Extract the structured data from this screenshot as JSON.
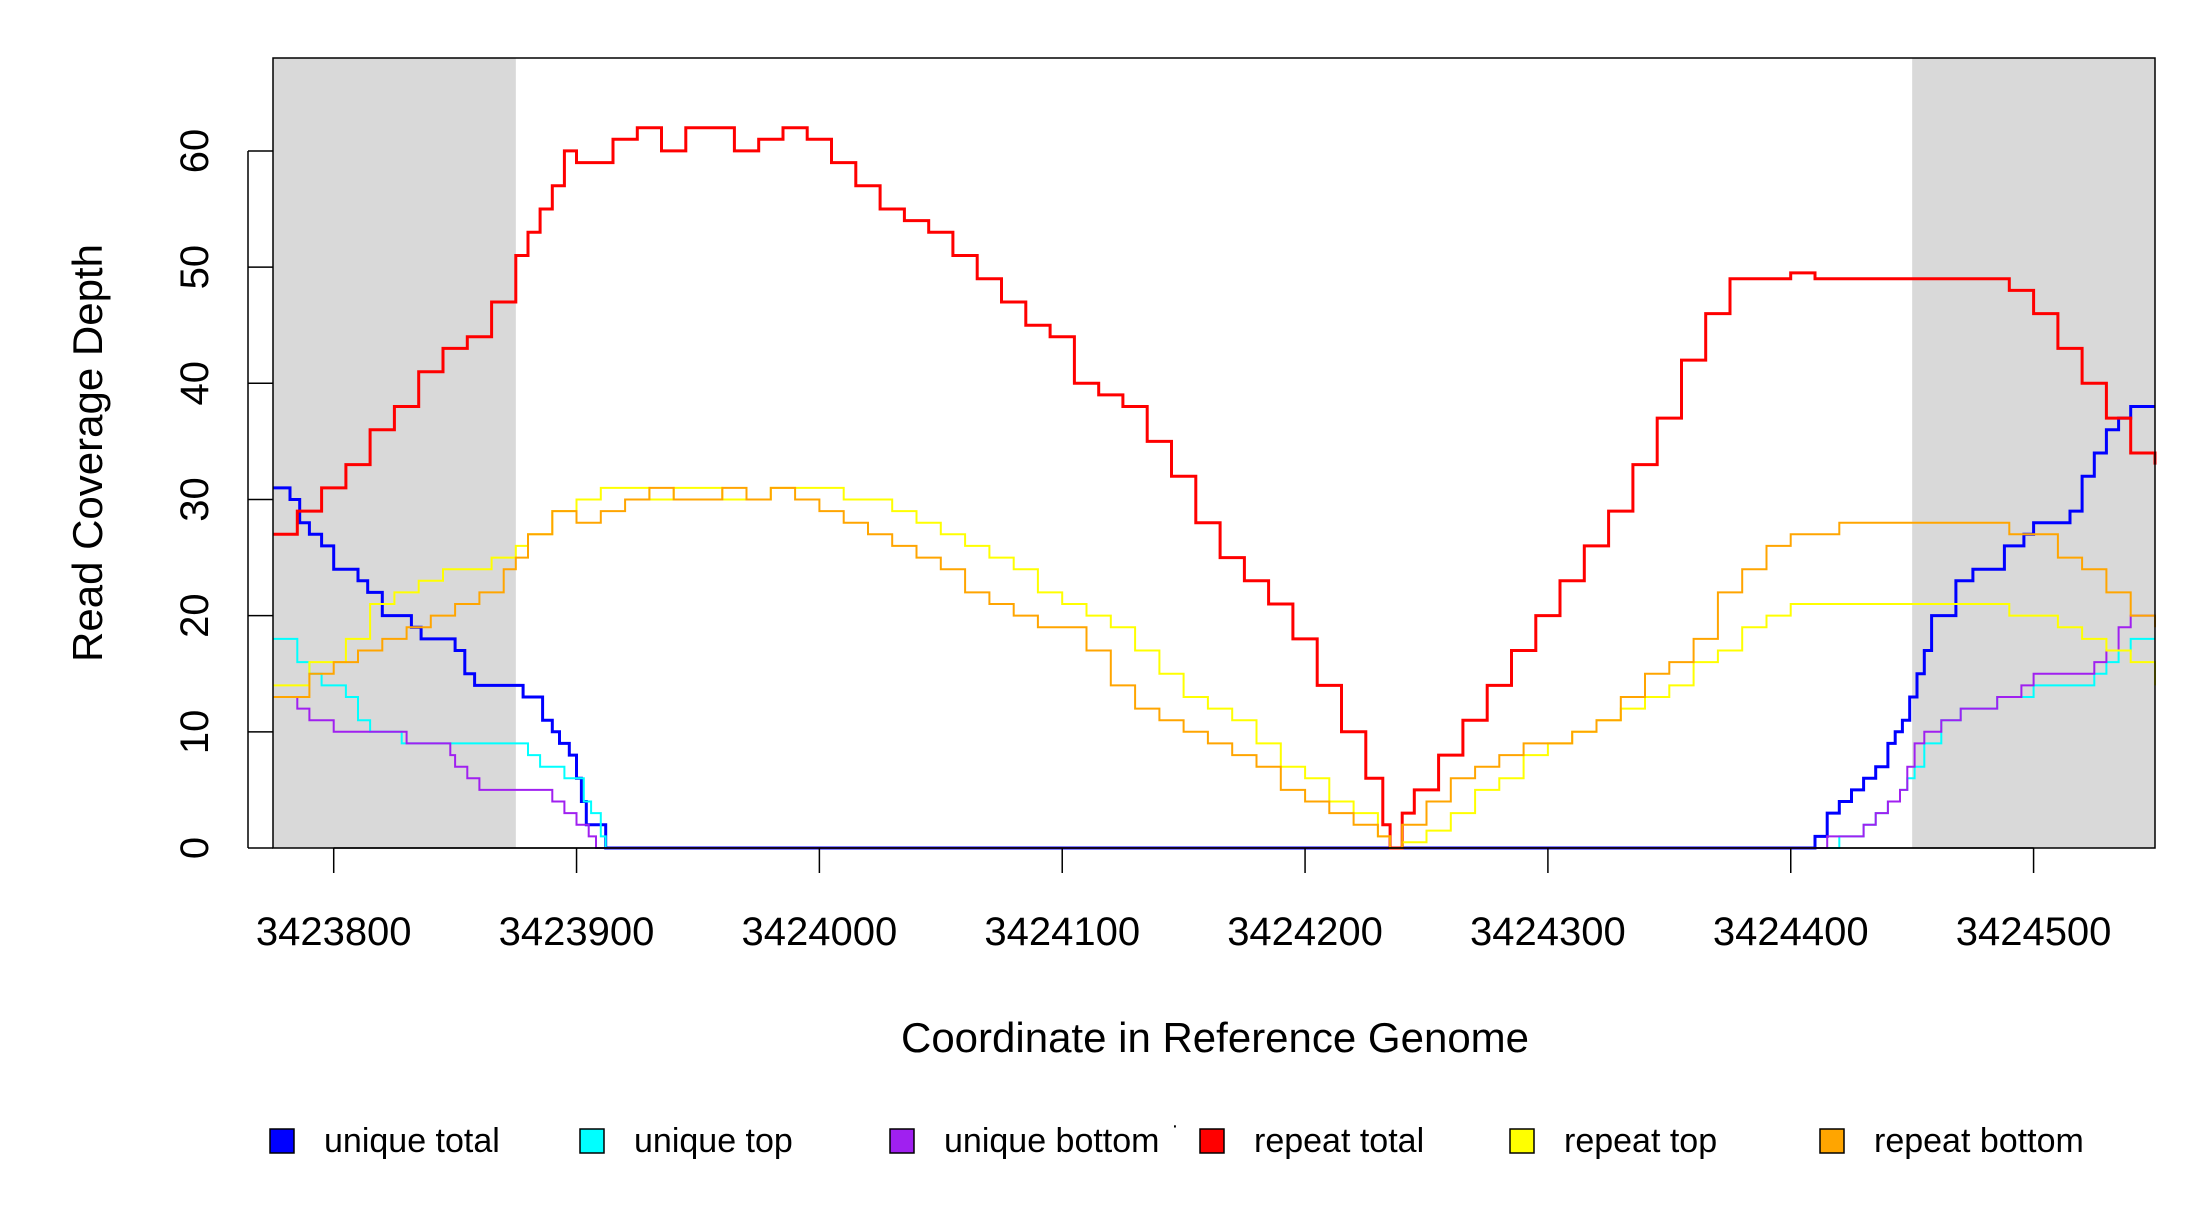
{
  "chart_data": {
    "type": "line",
    "title": "",
    "xlabel": "Coordinate in Reference Genome",
    "ylabel": "Read Coverage Depth",
    "xlim": [
      3423775,
      3424550
    ],
    "ylim": [
      0,
      68
    ],
    "x_ticks": [
      3423800,
      3423900,
      3424000,
      3424100,
      3424200,
      3424300,
      3424400,
      3424500
    ],
    "x_tick_labels": [
      "3423800",
      "3423900",
      "3424000",
      "3424100",
      "3424200",
      "3424300",
      "3424400",
      "3424500"
    ],
    "y_ticks": [
      0,
      10,
      20,
      30,
      40,
      50,
      60
    ],
    "y_tick_labels": [
      "0",
      "10",
      "20",
      "30",
      "40",
      "50",
      "60"
    ],
    "shaded_regions": [
      {
        "from": 3423775,
        "to": 3423875,
        "color": "#d9d9d9"
      },
      {
        "from": 3424450,
        "to": 3424550,
        "color": "#d9d9d9"
      }
    ],
    "grid": false,
    "legend_position": "bottom",
    "series": [
      {
        "name": "unique total",
        "color": "#0000ff",
        "width": 3,
        "step": true,
        "x": [
          3423775,
          3423782,
          3423786,
          3423790,
          3423795,
          3423800,
          3423805,
          3423810,
          3423814,
          3423820,
          3423825,
          3423832,
          3423836,
          3423848,
          3423850,
          3423854,
          3423858,
          3423870,
          3423878,
          3423883,
          3423886,
          3423890,
          3423893,
          3423897,
          3423900,
          3423902,
          3423904,
          3423906,
          3423909,
          3423912,
          3424405,
          3424410,
          3424415,
          3424420,
          3424425,
          3424430,
          3424435,
          3424440,
          3424443,
          3424446,
          3424449,
          3424452,
          3424455,
          3424458,
          3424462,
          3424468,
          3424475,
          3424482,
          3424488,
          3424492,
          3424496,
          3424500,
          3424515,
          3424520,
          3424525,
          3424530,
          3424535,
          3424540,
          3424550
        ],
        "y": [
          31,
          30,
          28,
          27,
          26,
          24,
          24,
          23,
          22,
          20,
          20,
          19,
          18,
          18,
          17,
          15,
          14,
          14,
          13,
          13,
          11,
          10,
          9,
          8,
          6,
          4,
          2,
          2,
          2,
          0,
          0,
          1,
          3,
          4,
          5,
          6,
          7,
          9,
          10,
          11,
          13,
          15,
          17,
          20,
          20,
          23,
          24,
          24,
          26,
          26,
          27,
          28,
          29,
          32,
          34,
          36,
          37,
          38,
          38
        ]
      },
      {
        "name": "unique top",
        "color": "#00ffff",
        "width": 2,
        "step": true,
        "x": [
          3423775,
          3423785,
          3423790,
          3423795,
          3423800,
          3423805,
          3423810,
          3423815,
          3423822,
          3423828,
          3423850,
          3423860,
          3423875,
          3423880,
          3423885,
          3423890,
          3423895,
          3423900,
          3423903,
          3423906,
          3423910,
          3423912,
          3424405,
          3424420,
          3424430,
          3424435,
          3424440,
          3424445,
          3424448,
          3424451,
          3424455,
          3424462,
          3424470,
          3424478,
          3424485,
          3424492,
          3424500,
          3424520,
          3424525,
          3424530,
          3424535,
          3424540,
          3424550
        ],
        "y": [
          18,
          16,
          15,
          14,
          14,
          13,
          11,
          10,
          10,
          9,
          9,
          9,
          9,
          8,
          7,
          7,
          6,
          6,
          4,
          3,
          1,
          0,
          0,
          1,
          2,
          3,
          4,
          5,
          6,
          7,
          9,
          11,
          12,
          12,
          13,
          13,
          14,
          14,
          15,
          16,
          17,
          18,
          18
        ]
      },
      {
        "name": "unique bottom",
        "color": "#a020f0",
        "width": 2,
        "step": true,
        "x": [
          3423775,
          3423780,
          3423785,
          3423790,
          3423795,
          3423800,
          3423812,
          3423820,
          3423825,
          3423830,
          3423835,
          3423840,
          3423845,
          3423848,
          3423850,
          3423855,
          3423860,
          3423875,
          3423880,
          3423890,
          3423895,
          3423900,
          3423905,
          3423908,
          3423912,
          3424405,
          3424415,
          3424425,
          3424430,
          3424435,
          3424440,
          3424445,
          3424448,
          3424451,
          3424455,
          3424462,
          3424470,
          3424480,
          3424485,
          3424490,
          3424495,
          3424500,
          3424510,
          3424520,
          3424525,
          3424530,
          3424535,
          3424540,
          3424550
        ],
        "y": [
          13,
          13,
          12,
          11,
          11,
          10,
          10,
          10,
          10,
          9,
          9,
          9,
          9,
          8,
          7,
          6,
          5,
          5,
          5,
          4,
          3,
          2,
          1,
          0,
          0,
          0,
          1,
          1,
          2,
          3,
          4,
          5,
          7,
          9,
          10,
          11,
          12,
          12,
          13,
          13,
          14,
          15,
          15,
          15,
          16,
          17,
          19,
          20,
          20
        ]
      },
      {
        "name": "repeat total",
        "color": "#ff0000",
        "width": 3,
        "step": true,
        "x": [
          3423775,
          3423785,
          3423795,
          3423805,
          3423815,
          3423825,
          3423835,
          3423845,
          3423855,
          3423865,
          3423875,
          3423880,
          3423885,
          3423890,
          3423895,
          3423900,
          3423905,
          3423915,
          3423925,
          3423935,
          3423945,
          3423955,
          3423965,
          3423975,
          3423985,
          3423995,
          3424005,
          3424015,
          3424025,
          3424035,
          3424045,
          3424055,
          3424065,
          3424075,
          3424085,
          3424095,
          3424105,
          3424115,
          3424125,
          3424135,
          3424145,
          3424155,
          3424165,
          3424175,
          3424185,
          3424195,
          3424205,
          3424215,
          3424225,
          3424232,
          3424235,
          3424240,
          3424245,
          3424255,
          3424265,
          3424275,
          3424285,
          3424295,
          3424305,
          3424315,
          3424325,
          3424335,
          3424345,
          3424355,
          3424365,
          3424375,
          3424385,
          3424395,
          3424400,
          3424410,
          3424420,
          3424430,
          3424440,
          3424450,
          3424460,
          3424470,
          3424480,
          3424490,
          3424500,
          3424510,
          3424520,
          3424530,
          3424540,
          3424550
        ],
        "y": [
          27,
          29,
          31,
          33,
          36,
          38,
          41,
          43,
          44,
          47,
          51,
          53,
          55,
          57,
          60,
          59,
          59,
          61,
          62,
          60,
          62,
          62,
          60,
          61,
          62,
          61,
          59,
          57,
          55,
          54,
          53,
          51,
          49,
          47,
          45,
          44,
          40,
          39,
          38,
          35,
          32,
          28,
          25,
          23,
          21,
          18,
          14,
          10,
          6,
          2,
          0,
          3,
          5,
          8,
          11,
          14,
          17,
          20,
          23,
          26,
          29,
          33,
          37,
          42,
          46,
          49,
          49,
          49,
          49.5,
          49,
          49,
          49,
          49,
          49,
          49,
          49,
          49,
          48,
          46,
          43,
          40,
          37,
          34,
          33
        ]
      },
      {
        "name": "repeat top",
        "color": "#ffff00",
        "width": 2,
        "step": true,
        "x": [
          3423775,
          3423790,
          3423805,
          3423815,
          3423825,
          3423835,
          3423845,
          3423855,
          3423865,
          3423875,
          3423880,
          3423890,
          3423900,
          3423910,
          3423920,
          3423930,
          3423940,
          3423950,
          3423960,
          3423970,
          3423980,
          3423990,
          3424000,
          3424010,
          3424020,
          3424030,
          3424040,
          3424050,
          3424060,
          3424070,
          3424080,
          3424090,
          3424100,
          3424110,
          3424120,
          3424130,
          3424140,
          3424150,
          3424160,
          3424170,
          3424180,
          3424190,
          3424200,
          3424210,
          3424220,
          3424230,
          3424235,
          3424240,
          3424250,
          3424260,
          3424270,
          3424280,
          3424290,
          3424300,
          3424310,
          3424320,
          3424330,
          3424340,
          3424350,
          3424360,
          3424370,
          3424380,
          3424390,
          3424400,
          3424410,
          3424420,
          3424450,
          3424460,
          3424470,
          3424480,
          3424490,
          3424500,
          3424510,
          3424520,
          3424530,
          3424540,
          3424550
        ],
        "y": [
          14,
          16,
          18,
          21,
          22,
          23,
          24,
          24,
          25,
          26,
          27,
          29,
          30,
          31,
          31,
          30,
          31,
          31,
          30,
          30,
          31,
          31,
          31,
          30,
          30,
          29,
          28,
          27,
          26,
          25,
          24,
          22,
          21,
          20,
          19,
          17,
          15,
          13,
          12,
          11,
          9,
          7,
          6,
          4,
          3,
          1,
          0,
          0.5,
          1.5,
          3,
          5,
          6,
          8,
          9,
          10,
          11,
          12,
          13,
          14,
          16,
          17,
          19,
          20,
          21,
          21,
          21,
          21,
          21,
          21,
          21,
          20,
          20,
          19,
          18,
          17,
          16,
          14
        ]
      },
      {
        "name": "repeat bottom",
        "color": "#ffa500",
        "width": 2,
        "step": true,
        "x": [
          3423775,
          3423790,
          3423800,
          3423810,
          3423820,
          3423830,
          3423840,
          3423850,
          3423860,
          3423870,
          3423875,
          3423880,
          3423890,
          3423900,
          3423910,
          3423920,
          3423930,
          3423940,
          3423950,
          3423960,
          3423970,
          3423980,
          3423990,
          3424000,
          3424010,
          3424020,
          3424030,
          3424040,
          3424050,
          3424060,
          3424070,
          3424080,
          3424090,
          3424100,
          3424110,
          3424120,
          3424130,
          3424140,
          3424150,
          3424160,
          3424170,
          3424180,
          3424190,
          3424200,
          3424210,
          3424220,
          3424230,
          3424235,
          3424240,
          3424250,
          3424260,
          3424270,
          3424280,
          3424290,
          3424300,
          3424310,
          3424320,
          3424330,
          3424340,
          3424350,
          3424360,
          3424370,
          3424380,
          3424390,
          3424400,
          3424420,
          3424450,
          3424460,
          3424470,
          3424480,
          3424490,
          3424500,
          3424510,
          3424520,
          3424530,
          3424540,
          3424550
        ],
        "y": [
          13,
          15,
          16,
          17,
          18,
          19,
          20,
          21,
          22,
          24,
          25,
          27,
          29,
          28,
          29,
          30,
          31,
          30,
          30,
          31,
          30,
          31,
          30,
          29,
          28,
          27,
          26,
          25,
          24,
          22,
          21,
          20,
          19,
          19,
          17,
          14,
          12,
          11,
          10,
          9,
          8,
          7,
          5,
          4,
          3,
          2,
          1,
          0,
          2,
          4,
          6,
          7,
          8,
          9,
          9,
          10,
          11,
          13,
          15,
          16,
          18,
          22,
          24,
          26,
          27,
          28,
          28,
          28,
          28,
          28,
          27,
          27,
          25,
          24,
          22,
          20,
          19
        ]
      }
    ],
    "legend_marker": "·"
  }
}
